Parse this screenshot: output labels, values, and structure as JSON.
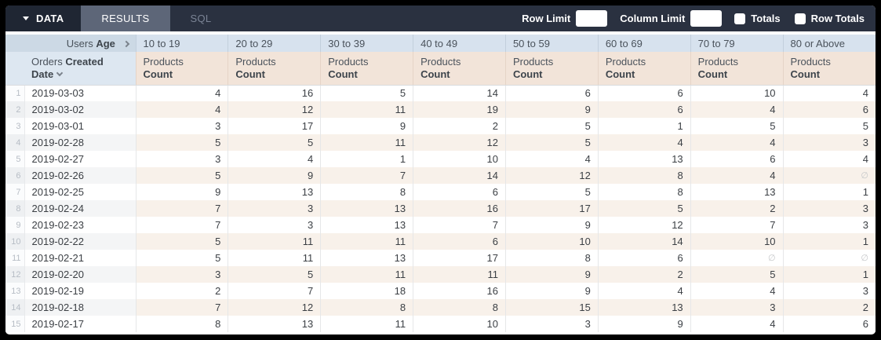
{
  "toolbar": {
    "tabs": [
      {
        "label": "DATA"
      },
      {
        "label": "RESULTS"
      },
      {
        "label": "SQL"
      }
    ],
    "row_limit_label": "Row Limit",
    "row_limit_value": "",
    "column_limit_label": "Column Limit",
    "column_limit_value": "",
    "totals_label": "Totals",
    "row_totals_label": "Row Totals",
    "totals_checked": false,
    "row_totals_checked": false,
    "colors": {
      "bar_bg": "#2a3140",
      "data_tab_bg": "#1f2633",
      "results_tab_bg": "#5d6678"
    }
  },
  "table": {
    "pivot_field": {
      "prefix": "Users",
      "name": "Age"
    },
    "row_field": {
      "prefix": "Orders",
      "name": "Created Date"
    },
    "measure": {
      "prefix": "Products",
      "name": "Count"
    },
    "pivot_values": [
      "10 to 19",
      "20 to 29",
      "30 to 39",
      "40 to 49",
      "50 to 59",
      "60 to 69",
      "70 to 79",
      "80 or Above"
    ],
    "null_symbol": "∅",
    "colors": {
      "pivot_field_bg": "#ccd9e5",
      "pivot_value_bg": "#d7e2ee",
      "row_field_bg": "#dde7f1",
      "measure_bg": "#f2e4d9",
      "even_row_bg": "#f8f1ea"
    },
    "rows": [
      {
        "num": 1,
        "date": "2019-03-03",
        "values": [
          4,
          16,
          5,
          14,
          6,
          6,
          10,
          4
        ]
      },
      {
        "num": 2,
        "date": "2019-03-02",
        "values": [
          4,
          12,
          11,
          19,
          9,
          6,
          4,
          6
        ]
      },
      {
        "num": 3,
        "date": "2019-03-01",
        "values": [
          3,
          17,
          9,
          2,
          5,
          1,
          5,
          5
        ]
      },
      {
        "num": 4,
        "date": "2019-02-28",
        "values": [
          5,
          5,
          11,
          12,
          5,
          4,
          4,
          3
        ]
      },
      {
        "num": 5,
        "date": "2019-02-27",
        "values": [
          3,
          4,
          1,
          10,
          4,
          13,
          6,
          4
        ]
      },
      {
        "num": 6,
        "date": "2019-02-26",
        "values": [
          5,
          9,
          7,
          14,
          12,
          8,
          4,
          null
        ]
      },
      {
        "num": 7,
        "date": "2019-02-25",
        "values": [
          9,
          13,
          8,
          6,
          5,
          8,
          13,
          1
        ]
      },
      {
        "num": 8,
        "date": "2019-02-24",
        "values": [
          7,
          3,
          13,
          16,
          17,
          5,
          2,
          3
        ]
      },
      {
        "num": 9,
        "date": "2019-02-23",
        "values": [
          7,
          3,
          13,
          7,
          9,
          12,
          7,
          3
        ]
      },
      {
        "num": 10,
        "date": "2019-02-22",
        "values": [
          5,
          11,
          11,
          6,
          10,
          14,
          10,
          1
        ]
      },
      {
        "num": 11,
        "date": "2019-02-21",
        "values": [
          5,
          11,
          13,
          17,
          8,
          6,
          null,
          null
        ]
      },
      {
        "num": 12,
        "date": "2019-02-20",
        "values": [
          3,
          5,
          11,
          11,
          9,
          2,
          5,
          1
        ]
      },
      {
        "num": 13,
        "date": "2019-02-19",
        "values": [
          2,
          7,
          18,
          16,
          9,
          4,
          4,
          3
        ]
      },
      {
        "num": 14,
        "date": "2019-02-18",
        "values": [
          7,
          12,
          8,
          8,
          15,
          13,
          3,
          2
        ]
      },
      {
        "num": 15,
        "date": "2019-02-17",
        "values": [
          8,
          13,
          11,
          10,
          3,
          9,
          4,
          6
        ]
      }
    ]
  }
}
